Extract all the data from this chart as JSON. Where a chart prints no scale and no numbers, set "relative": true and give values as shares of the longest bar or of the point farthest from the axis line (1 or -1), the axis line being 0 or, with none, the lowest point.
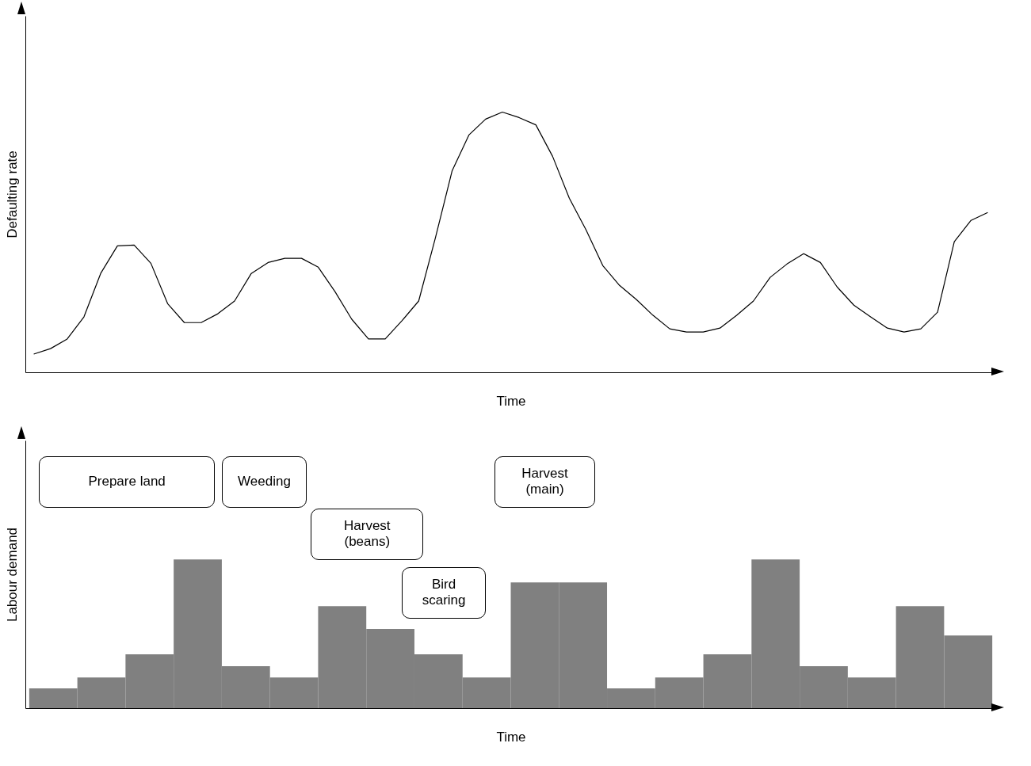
{
  "chart_data": [
    {
      "type": "line",
      "relative": true,
      "color": "#000000",
      "xlabel": "Time",
      "ylabel": "Defaulting rate",
      "categories": [
        null,
        null,
        null,
        null,
        null,
        null,
        null,
        null,
        null,
        null,
        null,
        null,
        null,
        null,
        null,
        null,
        null,
        null,
        null,
        null,
        null,
        null,
        null,
        null,
        null,
        null,
        null,
        null,
        null,
        null,
        null,
        null,
        null,
        null,
        null,
        null,
        null,
        null,
        null,
        null,
        null,
        null,
        null,
        null,
        null,
        null,
        null,
        null,
        null,
        null,
        null,
        null,
        null,
        null,
        null,
        null,
        null,
        null
      ],
      "values": [
        0.07,
        0.091,
        0.128,
        0.213,
        0.38,
        0.486,
        0.489,
        0.419,
        0.264,
        0.191,
        0.191,
        0.225,
        0.274,
        0.38,
        0.422,
        0.438,
        0.438,
        0.404,
        0.31,
        0.204,
        0.128,
        0.128,
        0.198,
        0.274,
        0.517,
        0.775,
        0.912,
        0.973,
        1,
        0.979,
        0.951,
        0.83,
        0.669,
        0.547,
        0.41,
        0.334,
        0.28,
        0.219,
        0.167,
        0.155,
        0.155,
        0.17,
        0.219,
        0.274,
        0.365,
        0.416,
        0.456,
        0.422,
        0.328,
        0.258,
        0.213,
        0.17,
        0.155,
        0.167,
        0.231,
        0.502,
        0.584,
        0.614
      ]
    },
    {
      "type": "bar",
      "relative": true,
      "color": "#808080",
      "xlabel": "Time",
      "ylabel": "Labour demand",
      "categories": [
        null,
        null,
        null,
        null,
        null,
        null,
        null,
        null,
        null,
        null,
        null,
        null,
        null,
        null,
        null,
        null,
        null,
        null,
        null,
        null
      ],
      "values": [
        0.133,
        0.207,
        0.362,
        1,
        0.282,
        0.207,
        0.686,
        0.532,
        0.362,
        0.207,
        0.846,
        0.846,
        0.133,
        0.207,
        0.362,
        1,
        0.282,
        0.207,
        0.686,
        0.489
      ],
      "annotations": [
        "Prepare land",
        "Weeding",
        "Harvest\n(beans)",
        "Bird\nscaring",
        "Harvest\n(main)"
      ]
    }
  ]
}
